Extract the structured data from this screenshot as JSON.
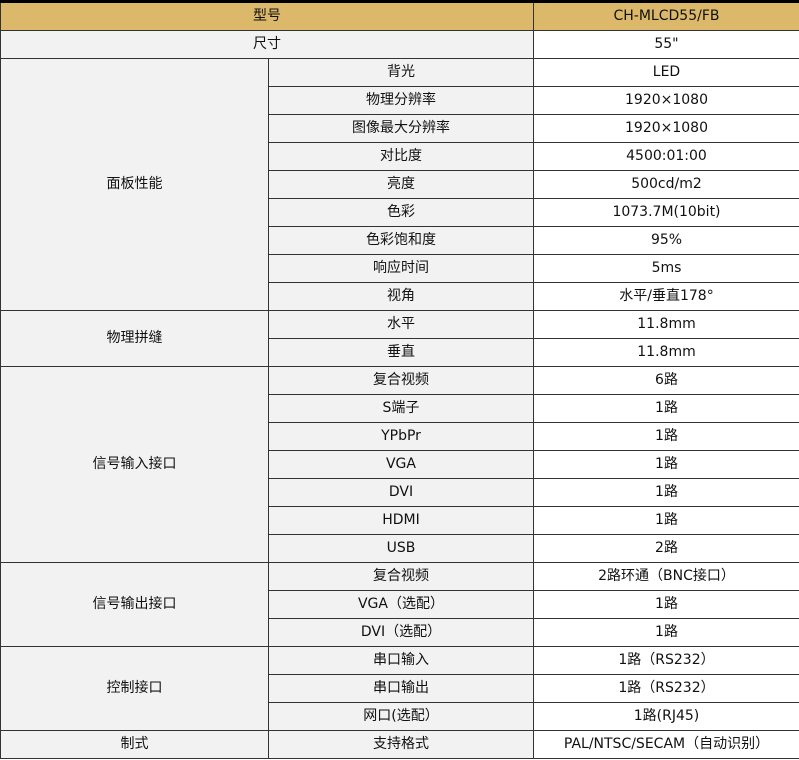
{
  "header": {
    "label": "型号",
    "value": "CH-MLCD55/FB"
  },
  "size": {
    "label": "尺寸",
    "value": "55\""
  },
  "groups": [
    {
      "name": "面板性能",
      "rows": [
        {
          "label": "背光",
          "value": "LED"
        },
        {
          "label": "物理分辨率",
          "value": "1920×1080"
        },
        {
          "label": "图像最大分辨率",
          "value": "1920×1080"
        },
        {
          "label": "对比度",
          "value": "4500:01:00"
        },
        {
          "label": "亮度",
          "value": "500cd/m2"
        },
        {
          "label": "色彩",
          "value": "1073.7M(10bit)"
        },
        {
          "label": "色彩饱和度",
          "value": "95%"
        },
        {
          "label": "响应时间",
          "value": "5ms"
        },
        {
          "label": "视角",
          "value": "水平/垂直178°"
        }
      ]
    },
    {
      "name": "物理拼缝",
      "rows": [
        {
          "label": "水平",
          "value": "11.8mm"
        },
        {
          "label": "垂直",
          "value": "11.8mm"
        }
      ]
    },
    {
      "name": "信号输入接口",
      "rows": [
        {
          "label": "复合视频",
          "value": "6路"
        },
        {
          "label": "S端子",
          "value": "1路"
        },
        {
          "label": "YPbPr",
          "value": "1路"
        },
        {
          "label": "VGA",
          "value": "1路"
        },
        {
          "label": "DVI",
          "value": "1路"
        },
        {
          "label": "HDMI",
          "value": "1路"
        },
        {
          "label": "USB",
          "value": "2路"
        }
      ]
    },
    {
      "name": "信号输出接口",
      "rows": [
        {
          "label": "复合视频",
          "value": "2路环通（BNC接口）"
        },
        {
          "label": "VGA（选配）",
          "value": "1路"
        },
        {
          "label": "DVI（选配）",
          "value": "1路"
        }
      ]
    },
    {
      "name": "控制接口",
      "rows": [
        {
          "label": "串口输入",
          "value": "1路（RS232）"
        },
        {
          "label": "串口输出",
          "value": "1路（RS232）"
        },
        {
          "label": "网口(选配）",
          "value": "1路(RJ45)"
        }
      ]
    },
    {
      "name": "制式",
      "rows": [
        {
          "label": "支持格式",
          "value": "PAL/NTSC/SECAM（自动识别）"
        }
      ]
    }
  ],
  "colors": {
    "header_bg": "#dcb96a",
    "label_bg": "#f2f2f2",
    "border": "#333333"
  }
}
